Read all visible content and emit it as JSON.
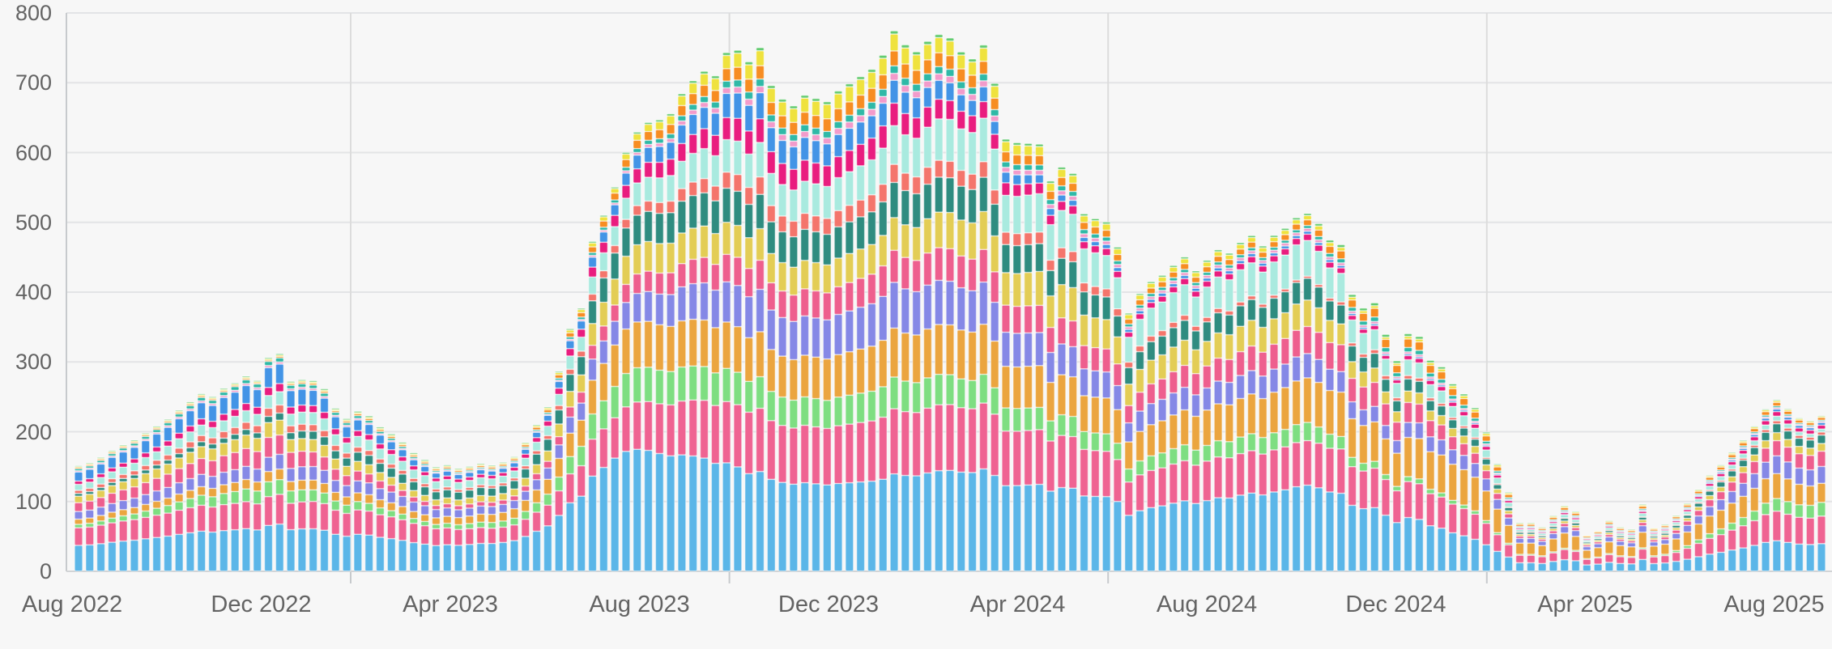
{
  "chart_data": {
    "type": "bar",
    "stacked": true,
    "title": "",
    "xlabel": "",
    "ylabel": "",
    "legend": "none",
    "grid": "horizontal-major",
    "x_unit": "week",
    "x_range": [
      "Aug 2022",
      "Aug 2025"
    ],
    "n_bars": 157,
    "ylim": [
      0,
      800
    ],
    "y_ticks": [
      0,
      100,
      200,
      300,
      400,
      500,
      600,
      700,
      800
    ],
    "x_tick_labels": [
      "Aug 2022",
      "Dec 2022",
      "Apr 2023",
      "Aug 2023",
      "Dec 2023",
      "Apr 2024",
      "Aug 2024",
      "Dec 2024",
      "Apr 2025",
      "Aug 2025"
    ],
    "style": {
      "background": "#f7f7f7",
      "gridline_color": "#e3e4e6",
      "vertical_gridline_color": "#dcdcdc",
      "axis_line_color": "#c7cacd",
      "baseline_color": "#d2d4d6",
      "tick_label_color": "#636363",
      "segment_outline": "rgba(255,255,255,0.45)"
    },
    "series_bottom_to_top": [
      {
        "name": "Sky Blue",
        "color": "#5bb6e8"
      },
      {
        "name": "Rose",
        "color": "#ef6392"
      },
      {
        "name": "Light Green",
        "color": "#7ede81"
      },
      {
        "name": "Amber",
        "color": "#eba53f"
      },
      {
        "name": "Periwinkle",
        "color": "#8588e6"
      },
      {
        "name": "Pink",
        "color": "#ee5f8e"
      },
      {
        "name": "Khaki",
        "color": "#e3cd55"
      },
      {
        "name": "Dark Teal",
        "color": "#2f8c80"
      },
      {
        "name": "Salmon",
        "color": "#f4756c"
      },
      {
        "name": "Pale Cyan",
        "color": "#a9eadf"
      },
      {
        "name": "Magenta",
        "color": "#e91d7f"
      },
      {
        "name": "Blue",
        "color": "#4394e6"
      },
      {
        "name": "Orchid",
        "color": "#f29bcb"
      },
      {
        "name": "Teal",
        "color": "#2fb9a7"
      },
      {
        "name": "Orange",
        "color": "#f78d22"
      },
      {
        "name": "Yellow",
        "color": "#efe23e"
      },
      {
        "name": "Green",
        "color": "#63cb70"
      }
    ],
    "weekly_totals": [
      148,
      152,
      160,
      170,
      178,
      185,
      195,
      205,
      215,
      228,
      240,
      252,
      248,
      260,
      268,
      278,
      272,
      305,
      310,
      270,
      272,
      270,
      258,
      230,
      215,
      225,
      218,
      202,
      192,
      180,
      165,
      155,
      145,
      148,
      143,
      146,
      150,
      148,
      152,
      160,
      180,
      205,
      230,
      280,
      340,
      369,
      463,
      500,
      540,
      590,
      620,
      635,
      640,
      650,
      680,
      700,
      715,
      710,
      745,
      750,
      735,
      755,
      700,
      680,
      670,
      685,
      680,
      675,
      690,
      700,
      710,
      720,
      740,
      775,
      755,
      745,
      760,
      770,
      765,
      745,
      735,
      755,
      700,
      620,
      615,
      614,
      613,
      560,
      580,
      571,
      513,
      506,
      501,
      465,
      370,
      398,
      415,
      424,
      438,
      450,
      430,
      445,
      460,
      455,
      470,
      480,
      465,
      480,
      490,
      505,
      511,
      497,
      474,
      468,
      397,
      378,
      386,
      341,
      302,
      340,
      335,
      300,
      290,
      265,
      250,
      230,
      195,
      150,
      110,
      67,
      67,
      61,
      77,
      91,
      83,
      50,
      56,
      70,
      61,
      58,
      93,
      60,
      65,
      78,
      95,
      115,
      135,
      150,
      168,
      185,
      205,
      229,
      242,
      229,
      216,
      212,
      219
    ],
    "composition_anchors": {
      "note": "fraction of weekly total per series, linearly interpolated between anchor weeks",
      "weeks": [
        0,
        17,
        31,
        48,
        60,
        72,
        90,
        110,
        117,
        129,
        140,
        148,
        156
      ],
      "fractions": {
        "Sky Blue": [
          0.25,
          0.215,
          0.25,
          0.3,
          0.19,
          0.178,
          0.21,
          0.241,
          0.235,
          0.18,
          0.18,
          0.18,
          0.18
        ],
        "Rose": [
          0.17,
          0.135,
          0.17,
          0.107,
          0.12,
          0.12,
          0.13,
          0.125,
          0.15,
          0.16,
          0.16,
          0.17,
          0.18
        ],
        "Light Green": [
          0.033,
          0.07,
          0.04,
          0.083,
          0.06,
          0.059,
          0.05,
          0.051,
          0.021,
          0.02,
          0.02,
          0.06,
          0.09
        ],
        "Amber": [
          0.05,
          0.048,
          0.062,
          0.11,
          0.085,
          0.09,
          0.1,
          0.125,
          0.15,
          0.24,
          0.24,
          0.17,
          0.125
        ],
        "Periwinkle": [
          0.075,
          0.067,
          0.083,
          0.063,
          0.08,
          0.085,
          0.075,
          0.068,
          0.056,
          0.1,
          0.1,
          0.1,
          0.11
        ],
        "Pink": [
          0.085,
          0.093,
          0.04,
          0.043,
          0.055,
          0.059,
          0.065,
          0.076,
          0.091,
          0.05,
          0.05,
          0.08,
          0.1
        ],
        "Khaki": [
          0.063,
          0.07,
          0.055,
          0.069,
          0.06,
          0.059,
          0.085,
          0.074,
          0.05,
          0.04,
          0.04,
          0.045,
          0.05
        ],
        "Dark Teal": [
          0.026,
          0.029,
          0.08,
          0.069,
          0.065,
          0.065,
          0.065,
          0.061,
          0.053,
          0.04,
          0.04,
          0.05,
          0.055
        ],
        "Salmon": [
          0.03,
          0.038,
          0.028,
          0.02,
          0.033,
          0.034,
          0.025,
          0.006,
          0.015,
          0.01,
          0.01,
          0.015,
          0.02
        ],
        "Pale Cyan": [
          0.058,
          0.06,
          0.075,
          0.05,
          0.065,
          0.07,
          0.095,
          0.1,
          0.07,
          0.05,
          0.05,
          0.035,
          0.02
        ],
        "Magenta": [
          0.032,
          0.038,
          0.035,
          0.03,
          0.045,
          0.043,
          0.02,
          0.018,
          0.015,
          0.03,
          0.03,
          0.028,
          0.025
        ],
        "Blue": [
          0.088,
          0.093,
          0.05,
          0.028,
          0.05,
          0.044,
          0.012,
          0.008,
          0.006,
          0.01,
          0.01,
          0.014,
          0.017
        ],
        "Orchid": [
          0.012,
          0.01,
          0.01,
          0.005,
          0.012,
          0.013,
          0.01,
          0.008,
          0.009,
          0.01,
          0.01,
          0.009,
          0.008
        ],
        "Teal": [
          0.02,
          0.019,
          0.015,
          0.008,
          0.014,
          0.014,
          0.012,
          0.008,
          0.018,
          0.02,
          0.02,
          0.012,
          0.008
        ],
        "Orange": [
          0.012,
          0.006,
          0.015,
          0.018,
          0.025,
          0.028,
          0.02,
          0.016,
          0.035,
          0.04,
          0.04,
          0.025,
          0.017
        ],
        "Yellow": [
          0.008,
          0.006,
          0.01,
          0.012,
          0.028,
          0.032,
          0.018,
          0.012,
          0.009,
          0.02,
          0.02,
          0.012,
          0.008
        ],
        "Green": [
          0.008,
          0.006,
          0.012,
          0.004,
          0.006,
          0.006,
          0.006,
          0.006,
          0.012,
          0.01,
          0.01,
          0.007,
          0.004
        ]
      }
    }
  }
}
